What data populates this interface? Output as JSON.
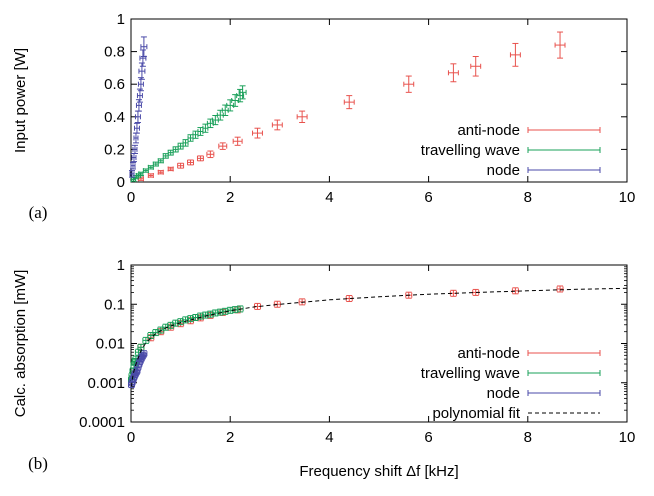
{
  "colors": {
    "anti_node": "#e8524d",
    "travelling_wave": "#1aa05a",
    "node": "#4a4aa8",
    "fit": "#000000"
  },
  "chart_data": [
    {
      "type": "scatter",
      "panel_label": "(a)",
      "xlabel": "",
      "ylabel": "Input power [W]",
      "xlim": [
        0,
        10
      ],
      "ylim": [
        0,
        1
      ],
      "yscale": "linear",
      "xticks": [
        0,
        2,
        4,
        6,
        8,
        10
      ],
      "xtick_labels": [
        "0",
        "2",
        "4",
        "6",
        "8",
        "10"
      ],
      "yticks": [
        0,
        0.2,
        0.4,
        0.6,
        0.8,
        1
      ],
      "ytick_labels": [
        "0",
        "0.2",
        "0.4",
        "0.6",
        "0.8",
        "1"
      ],
      "legend_position": "bottom-right",
      "series": [
        {
          "name": "anti-node",
          "color_key": "anti_node",
          "x": [
            0.2,
            0.4,
            0.6,
            0.8,
            1.0,
            1.2,
            1.4,
            1.6,
            1.85,
            2.15,
            2.55,
            2.95,
            3.45,
            4.4,
            5.6,
            6.5,
            6.95,
            7.75,
            8.65
          ],
          "y": [
            0.02,
            0.04,
            0.06,
            0.08,
            0.1,
            0.12,
            0.145,
            0.17,
            0.22,
            0.25,
            0.3,
            0.35,
            0.4,
            0.49,
            0.6,
            0.67,
            0.71,
            0.78,
            0.84
          ],
          "yerr": [
            0.01,
            0.01,
            0.01,
            0.01,
            0.015,
            0.015,
            0.015,
            0.02,
            0.02,
            0.025,
            0.03,
            0.03,
            0.035,
            0.04,
            0.05,
            0.055,
            0.06,
            0.07,
            0.08
          ],
          "xerr": [
            0.05,
            0.05,
            0.05,
            0.05,
            0.06,
            0.06,
            0.06,
            0.07,
            0.08,
            0.09,
            0.1,
            0.1,
            0.1,
            0.1,
            0.1,
            0.1,
            0.1,
            0.1,
            0.1
          ]
        },
        {
          "name": "travelling wave",
          "color_key": "travelling_wave",
          "x": [
            0.05,
            0.1,
            0.15,
            0.2,
            0.3,
            0.4,
            0.5,
            0.6,
            0.7,
            0.8,
            0.9,
            1.0,
            1.1,
            1.2,
            1.3,
            1.4,
            1.5,
            1.6,
            1.7,
            1.8,
            1.9,
            2.0,
            2.1,
            2.2,
            2.25
          ],
          "y": [
            0.015,
            0.03,
            0.04,
            0.05,
            0.07,
            0.09,
            0.11,
            0.13,
            0.16,
            0.18,
            0.2,
            0.22,
            0.24,
            0.27,
            0.29,
            0.31,
            0.33,
            0.36,
            0.38,
            0.41,
            0.44,
            0.47,
            0.5,
            0.53,
            0.55
          ],
          "yerr": [
            0.01,
            0.01,
            0.01,
            0.01,
            0.01,
            0.01,
            0.012,
            0.012,
            0.014,
            0.015,
            0.016,
            0.018,
            0.02,
            0.02,
            0.022,
            0.024,
            0.025,
            0.026,
            0.028,
            0.03,
            0.032,
            0.034,
            0.036,
            0.038,
            0.04
          ],
          "xerr": [
            0.04,
            0.04,
            0.04,
            0.04,
            0.05,
            0.05,
            0.05,
            0.05,
            0.05,
            0.05,
            0.05,
            0.05,
            0.05,
            0.05,
            0.05,
            0.05,
            0.05,
            0.06,
            0.06,
            0.06,
            0.06,
            0.07,
            0.07,
            0.07,
            0.07
          ]
        },
        {
          "name": "node",
          "color_key": "node",
          "x": [
            0.02,
            0.04,
            0.06,
            0.08,
            0.1,
            0.12,
            0.14,
            0.16,
            0.18,
            0.2,
            0.22,
            0.24,
            0.26
          ],
          "y": [
            0.05,
            0.1,
            0.15,
            0.2,
            0.27,
            0.33,
            0.4,
            0.47,
            0.53,
            0.6,
            0.68,
            0.76,
            0.83
          ],
          "yerr": [
            0.02,
            0.02,
            0.025,
            0.025,
            0.03,
            0.03,
            0.035,
            0.035,
            0.04,
            0.04,
            0.05,
            0.05,
            0.06
          ],
          "xerr": [
            0.04,
            0.04,
            0.04,
            0.04,
            0.04,
            0.05,
            0.05,
            0.05,
            0.05,
            0.05,
            0.06,
            0.06,
            0.06
          ]
        }
      ]
    },
    {
      "type": "scatter",
      "panel_label": "(b)",
      "xlabel": "Frequency shift Δf [kHz]",
      "ylabel": "Calc. absorption [mW]",
      "xlim": [
        0,
        10
      ],
      "ylim": [
        0.0001,
        1
      ],
      "yscale": "log",
      "xticks": [
        0,
        2,
        4,
        6,
        8,
        10
      ],
      "xtick_labels": [
        "0",
        "2",
        "4",
        "6",
        "8",
        "10"
      ],
      "yticks": [
        0.0001,
        0.001,
        0.01,
        0.1,
        1
      ],
      "ytick_labels": [
        "0.0001",
        "0.001",
        "0.01",
        "0.1",
        "1"
      ],
      "legend_position": "bottom-right",
      "series": [
        {
          "name": "anti-node",
          "color_key": "anti_node",
          "x": [
            0.2,
            0.4,
            0.6,
            0.8,
            1.0,
            1.2,
            1.4,
            1.6,
            1.85,
            2.15,
            2.55,
            2.95,
            3.45,
            4.4,
            5.6,
            6.5,
            6.95,
            7.75,
            8.65
          ],
          "y": [
            0.008,
            0.014,
            0.02,
            0.026,
            0.032,
            0.038,
            0.045,
            0.052,
            0.062,
            0.072,
            0.088,
            0.1,
            0.115,
            0.14,
            0.17,
            0.19,
            0.2,
            0.22,
            0.245
          ]
        },
        {
          "name": "travelling wave",
          "color_key": "travelling_wave",
          "x": [
            0.01,
            0.02,
            0.04,
            0.06,
            0.08,
            0.1,
            0.15,
            0.2,
            0.3,
            0.4,
            0.5,
            0.6,
            0.7,
            0.8,
            0.9,
            1.0,
            1.1,
            1.2,
            1.3,
            1.4,
            1.5,
            1.6,
            1.7,
            1.8,
            1.9,
            2.0,
            2.1,
            2.2
          ],
          "y": [
            0.0012,
            0.0015,
            0.002,
            0.0028,
            0.0035,
            0.004,
            0.006,
            0.008,
            0.012,
            0.016,
            0.019,
            0.022,
            0.026,
            0.029,
            0.033,
            0.036,
            0.04,
            0.043,
            0.046,
            0.05,
            0.053,
            0.056,
            0.06,
            0.063,
            0.066,
            0.07,
            0.073,
            0.076
          ]
        },
        {
          "name": "node",
          "color_key": "node",
          "x": [
            0.01,
            0.02,
            0.04,
            0.06,
            0.08,
            0.1,
            0.12,
            0.14,
            0.16,
            0.18,
            0.2,
            0.22,
            0.24,
            0.26
          ],
          "y": [
            0.0009,
            0.001,
            0.0012,
            0.0014,
            0.0016,
            0.0018,
            0.002,
            0.0025,
            0.003,
            0.0035,
            0.004,
            0.0045,
            0.005,
            0.0055
          ]
        },
        {
          "name": "polynomial fit",
          "color_key": "fit",
          "style": "dashed",
          "x": [
            0.01,
            0.02,
            0.05,
            0.1,
            0.2,
            0.3,
            0.5,
            0.7,
            1.0,
            1.5,
            2.0,
            2.5,
            3.0,
            4.0,
            5.0,
            6.0,
            7.0,
            8.0,
            9.0,
            10.0
          ],
          "y": [
            0.0008,
            0.0011,
            0.0018,
            0.003,
            0.0065,
            0.0105,
            0.018,
            0.025,
            0.034,
            0.05,
            0.068,
            0.086,
            0.1,
            0.13,
            0.155,
            0.18,
            0.2,
            0.22,
            0.24,
            0.255
          ]
        }
      ]
    }
  ]
}
